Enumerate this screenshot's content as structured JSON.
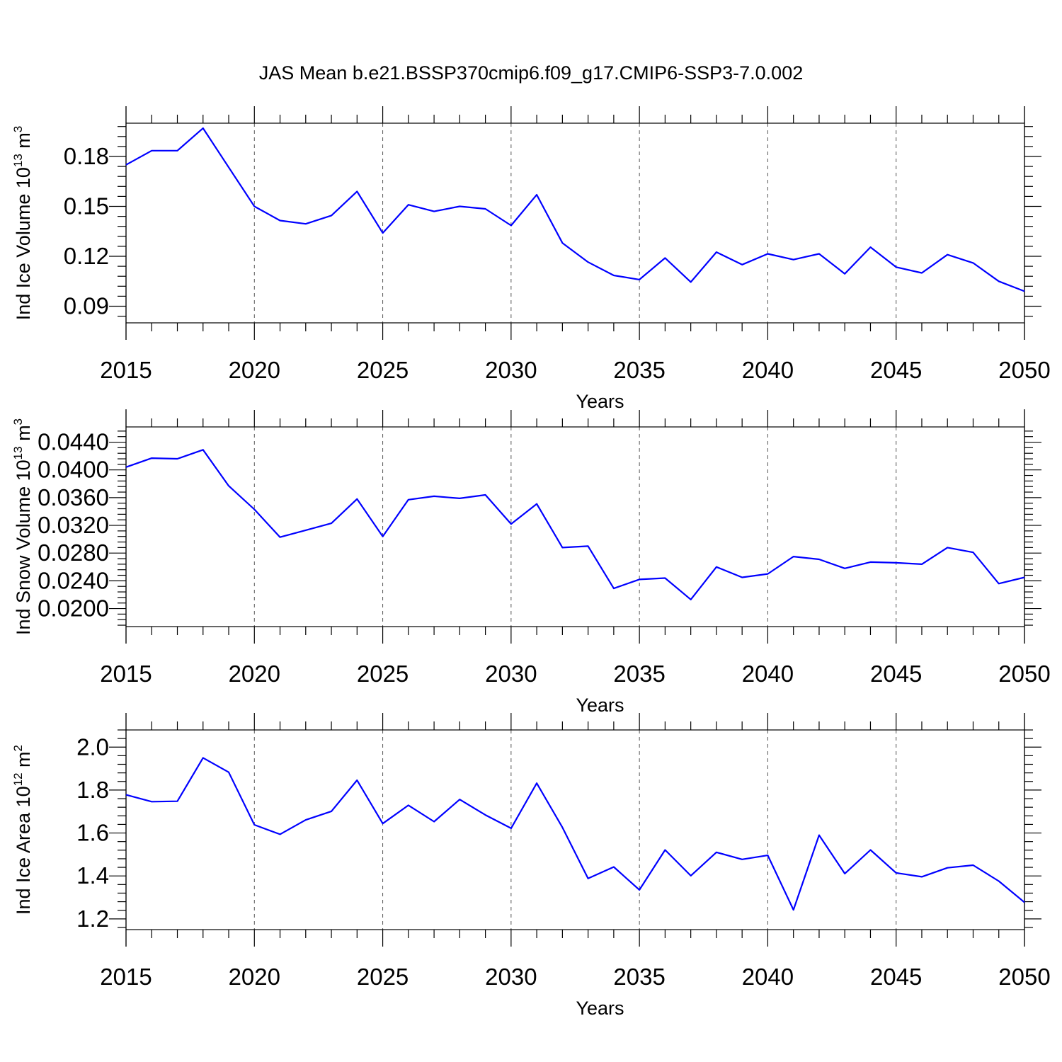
{
  "title": "JAS Mean b.e21.BSSP370cmip6.f09_g17.CMIP6-SSP3-7.0.002",
  "colors": {
    "line": "#0000ff",
    "axis": "#000000",
    "grid": "#555555"
  },
  "chart_data": [
    {
      "type": "line",
      "xlabel": "Years",
      "ylabel": {
        "text": "Ind Ice Volume 10",
        "sup": "13",
        "unit": " m",
        "unit_sup": "3"
      },
      "xlim": [
        2015,
        2050
      ],
      "ylim": [
        0.08,
        0.2
      ],
      "x_ticks": [
        "2015",
        "2020",
        "2025",
        "2030",
        "2035",
        "2040",
        "2045",
        "2050"
      ],
      "y_ticks": [
        "0.09",
        "0.12",
        "0.15",
        "0.18"
      ],
      "grid": "vertical dashed",
      "x": [
        2015,
        2016,
        2017,
        2018,
        2019,
        2020,
        2021,
        2022,
        2023,
        2024,
        2025,
        2026,
        2027,
        2028,
        2029,
        2030,
        2031,
        2032,
        2033,
        2034,
        2035,
        2036,
        2037,
        2038,
        2039,
        2040,
        2041,
        2042,
        2043,
        2044,
        2045,
        2046,
        2047,
        2048,
        2049,
        2050
      ],
      "values": [
        0.175,
        0.1835,
        0.1835,
        0.197,
        0.1735,
        0.15,
        0.1415,
        0.1395,
        0.1445,
        0.159,
        0.134,
        0.151,
        0.147,
        0.15,
        0.1485,
        0.1385,
        0.157,
        0.128,
        0.1165,
        0.1085,
        0.106,
        0.119,
        0.1045,
        0.1225,
        0.115,
        0.1215,
        0.118,
        0.1215,
        0.1095,
        0.1255,
        0.1135,
        0.11,
        0.121,
        0.116,
        0.105,
        0.099
      ]
    },
    {
      "type": "line",
      "xlabel": "Years",
      "ylabel": {
        "text": "Ind Snow Volume 10",
        "sup": "13",
        "unit": " m",
        "unit_sup": "3"
      },
      "xlim": [
        2015,
        2050
      ],
      "ylim": [
        0.0174,
        0.0462
      ],
      "x_ticks": [
        "2015",
        "2020",
        "2025",
        "2030",
        "2035",
        "2040",
        "2045",
        "2050"
      ],
      "y_ticks": [
        "0.0200",
        "0.0240",
        "0.0280",
        "0.0320",
        "0.0360",
        "0.0400",
        "0.0440"
      ],
      "grid": "vertical dashed",
      "x": [
        2015,
        2016,
        2017,
        2018,
        2019,
        2020,
        2021,
        2022,
        2023,
        2024,
        2025,
        2026,
        2027,
        2028,
        2029,
        2030,
        2031,
        2032,
        2033,
        2034,
        2035,
        2036,
        2037,
        2038,
        2039,
        2040,
        2041,
        2042,
        2043,
        2044,
        2045,
        2046,
        2047,
        2048,
        2049,
        2050
      ],
      "values": [
        0.0404,
        0.0417,
        0.0416,
        0.0429,
        0.0377,
        0.0343,
        0.0303,
        0.0313,
        0.0323,
        0.0358,
        0.0304,
        0.0357,
        0.0362,
        0.0359,
        0.0364,
        0.0322,
        0.0351,
        0.0288,
        0.029,
        0.0229,
        0.0242,
        0.0244,
        0.0213,
        0.026,
        0.0245,
        0.025,
        0.0275,
        0.0271,
        0.0258,
        0.0267,
        0.0266,
        0.0264,
        0.0288,
        0.0281,
        0.0236,
        0.0245
      ]
    },
    {
      "type": "line",
      "xlabel": "Years",
      "ylabel": {
        "text": "Ind Ice Area 10",
        "sup": "12",
        "unit": " m",
        "unit_sup": "2"
      },
      "xlim": [
        2015,
        2050
      ],
      "ylim": [
        1.15,
        2.08
      ],
      "x_ticks": [
        "2015",
        "2020",
        "2025",
        "2030",
        "2035",
        "2040",
        "2045",
        "2050"
      ],
      "y_ticks": [
        "1.2",
        "1.4",
        "1.6",
        "1.8",
        "2.0"
      ],
      "grid": "vertical dashed",
      "x": [
        2015,
        2016,
        2017,
        2018,
        2019,
        2020,
        2021,
        2022,
        2023,
        2024,
        2025,
        2026,
        2027,
        2028,
        2029,
        2030,
        2031,
        2032,
        2033,
        2034,
        2035,
        2036,
        2037,
        2038,
        2039,
        2040,
        2041,
        2042,
        2043,
        2044,
        2045,
        2046,
        2047,
        2048,
        2049,
        2050
      ],
      "values": [
        1.778,
        1.746,
        1.748,
        1.95,
        1.883,
        1.638,
        1.594,
        1.661,
        1.701,
        1.846,
        1.644,
        1.729,
        1.653,
        1.756,
        1.684,
        1.622,
        1.832,
        1.626,
        1.388,
        1.442,
        1.335,
        1.521,
        1.401,
        1.51,
        1.477,
        1.496,
        1.242,
        1.59,
        1.411,
        1.521,
        1.414,
        1.396,
        1.438,
        1.45,
        1.376,
        1.277
      ]
    }
  ]
}
